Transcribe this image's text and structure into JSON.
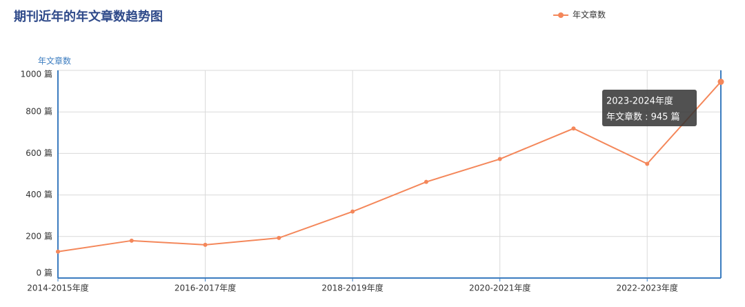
{
  "chart_data": {
    "type": "line",
    "title": "期刊近年的年文章数趋势图",
    "y_label": "年文章数",
    "categories": [
      "2014-2015年度",
      null,
      "2016-2017年度",
      null,
      "2018-2019年度",
      null,
      "2020-2021年度",
      null,
      "2022-2023年度",
      null
    ],
    "series": [
      {
        "name": "年文章数",
        "color": "#f4875a",
        "values": [
          127,
          180,
          160,
          193,
          320,
          463,
          573,
          720,
          550,
          945
        ]
      }
    ],
    "ylim": [
      0,
      1000
    ],
    "yticks": [
      {
        "value": 0,
        "label": "0 篇"
      },
      {
        "value": 200,
        "label": "200 篇"
      },
      {
        "value": 400,
        "label": "400 篇"
      },
      {
        "value": 600,
        "label": "600 篇"
      },
      {
        "value": 800,
        "label": "800 篇"
      },
      {
        "value": 1000,
        "label": "1000 篇"
      }
    ],
    "grid": true,
    "legend": "top-right",
    "tooltip": {
      "title": "2023-2024年度",
      "label": "年文章数 : 945 篇"
    }
  }
}
